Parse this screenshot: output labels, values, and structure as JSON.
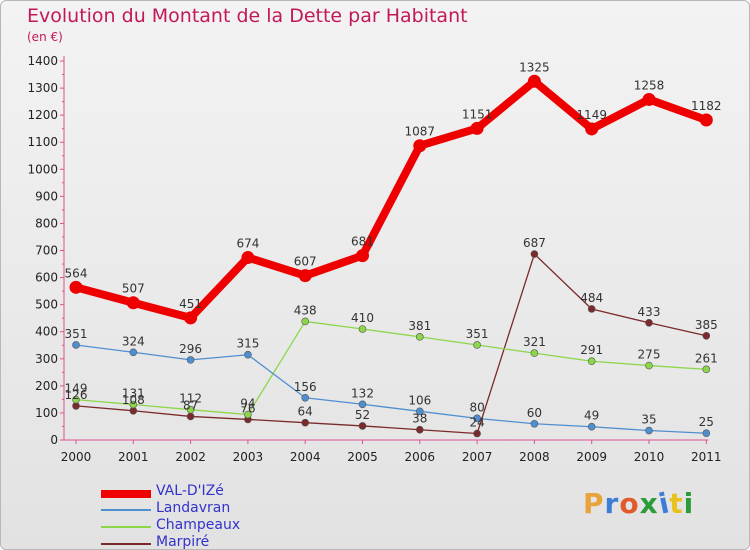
{
  "title": "Evolution du Montant de la Dette par Habitant",
  "unit_label": "(en €)",
  "logo_text": "Proxiti",
  "logo_colors": [
    "#e8a33a",
    "#3b7dd8",
    "#e05a2a",
    "#2a9d3a",
    "#3b7dd8",
    "#e8c21a",
    "#2a9d3a"
  ],
  "chart_data": {
    "type": "line",
    "x": [
      "2000",
      "2001",
      "2002",
      "2003",
      "2004",
      "2005",
      "2006",
      "2007",
      "2008",
      "2009",
      "2010",
      "2011"
    ],
    "ylim": [
      0,
      1400
    ],
    "yticks": [
      0,
      100,
      200,
      300,
      400,
      500,
      600,
      700,
      800,
      900,
      1000,
      1100,
      1200,
      1300,
      1400
    ],
    "grid": false,
    "legend_position": "bottom-left",
    "series": [
      {
        "name": "VAL-D'IZé",
        "color": "#ee0000",
        "values": [
          564,
          507,
          451,
          674,
          607,
          681,
          1087,
          1151,
          1325,
          1149,
          1258,
          1182
        ]
      },
      {
        "name": "Landavran",
        "color": "#4f8fd0",
        "values": [
          351,
          324,
          296,
          315,
          156,
          132,
          106,
          80,
          60,
          49,
          35,
          25
        ]
      },
      {
        "name": "Champeaux",
        "color": "#8dd64a",
        "values": [
          149,
          131,
          112,
          94,
          438,
          410,
          381,
          351,
          321,
          291,
          275,
          261
        ]
      },
      {
        "name": "Marpiré",
        "color": "#7a2a2a",
        "values": [
          126,
          108,
          87,
          76,
          64,
          52,
          38,
          24,
          687,
          484,
          433,
          385
        ]
      }
    ]
  }
}
